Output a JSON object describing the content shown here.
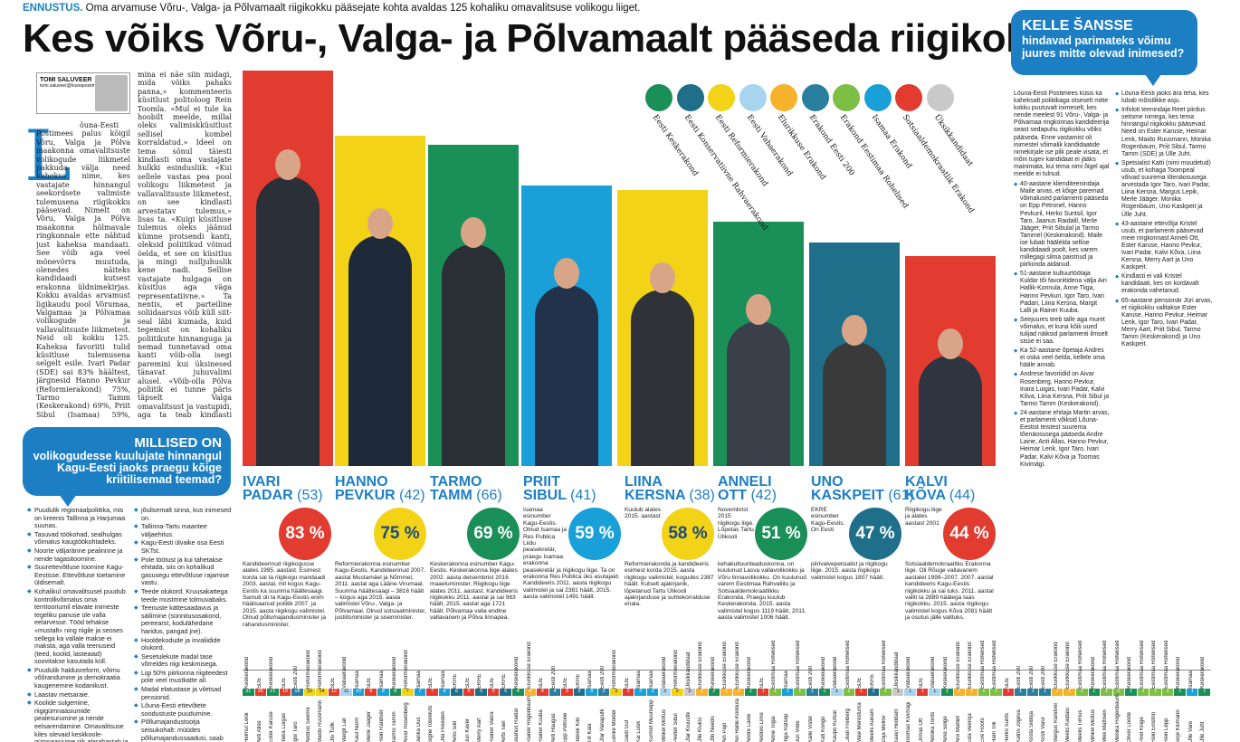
{
  "kicker": {
    "label": "ENNUSTUS.",
    "text": "Oma arvamuse Võru-, Valga- ja Põlvamaalt riigikokku pääsejate kohta avaldas 125 kohaliku omavalitsuse volikogu liiget."
  },
  "headline": "Kes võiks Võru-, Valga- ja Põlvamaalt pääseda riigikokku?",
  "byline": {
    "author": "TOMI SALUVEER",
    "email": "tomi.saluveer@lounapostimees.ee"
  },
  "article": {
    "dropcap": "L",
    "col1": "õuna-Eesti Postimees palus kõigil Võru, Valga ja Põlva maakonna omavalitsuste volikogude liikmetel pakkuda välja need kaheksa nime, kes vastajate hinnangul seekordsete valimiste tulemusena riigikokku pääsevad. Nimelt on Võru, Valga ja Põlva maakonna hõlmavale ringkonnale ette nähtud just kaheksa mandaati. See võib aga veel mõnevõrra muutuda, olenedes näiteks kandidaadi kutsest erakonna üldnimekirjas. Kokku avaldas arvamust ligikaudu pool Võrumaa, Valgamaa ja Põlvamaa volikogude ja vallavalitsuste liikmetest. Neid oli kokku 125. Kaheksa favoriiti tulid küsitluse tulemusena selgelt esile. Ivari Padar (SDE) sai 83% häältest, järgnesid Hanno Pevkur (Reformierakond) 75%, Tarmo Tamm (Keskerakond) 69%, Priit Sibul (Isamaa) 59%, Liina Kersna (Reformierakond) 58%, Anneli Ott (Keskerakond) 51%, Uno Kaskpeit (EKRE) 47% ja Kalvi Kõva (SDE) 44 protsendiga. «Sellise küsitluse mõte on väga hea. Kuigi mõni partei võib hakata näigutama või vaita, et see on kuidagi kallutatud, siis",
    "col2": "mina ei näe siin midagi, mida võiks pahaks panna,» kommenteeris küsitlust politoloog Rein Toomla. «Mul ei tule ka hoobilt meelde, millal oleks valimiskküsitlust sellisel kombel korraldatud.» Ideel on tema sõnul täiesti kindlasti oma vastajate hulkki esindusliik. «Kui sellele vastas pea pool volikogu liikmetest ja vallavalitsuste liikmetest, on see kindlasti arvestatav tulemus,» lisas ta. «Kuigi küsitluse tulemus oleks jäänud kümne protsendi kanti, oleksid poliitikud võinud öelda, et see on küsitlus ja mingi nulljuhuslik kene nadi. Sellise vastajate hulgaga on küsitlus aga väga representatiivne.» Ta nentis, et parteiline soliidaarsus võib küll siit-seal läbi kumada, kuid tegemist on kohaliku poliitikute hinnanguga ja nemad tunnetavad oma kanti võib-olla isegi paremini kui üksinesed tänavat juhuvalimi alusel. «Võib-olla Põlva poliitik ei tunne päris täpselt Valga omavalitsust ja vastupidi, aga ta teab kindlasti rohkem kui mõni uuringufirma.» Toomla hinnangul kinnitas ka Johan Skytte poliitikauuringute instituudi juhataja Mihkel Solvak. «Volikogu liikmed võivad tajuda hetkeolukorda kindlasti paremini,» rääkis Solvak. «Nad on näinud ka kampaania poolt ja teavad, kellel ja kus mingis piirkonnas tugevam toetus on.» Ta lisas, et riikliikud küsitlused kohalikku meelsust sageli kuigi hästi ei peegelda, kuna piirkonnast on küsitud vaid sadakonna inimese arvamust."
  },
  "qbox": {
    "title": "MILLISED ON",
    "subtitle": "volikogudesse kuulujate hinnangul Kagu-Eesti jaoks praegu kõige kriitilisemad teemad?"
  },
  "issues_left": [
    "Puudulik regionaalpoliitika, mis on kreenis Tallinna ja Harjumaa suunas.",
    "Tasuvad töökohad, sealhulgas võimalus kaugtöökohtadeks.",
    "Noorte väljaränne pealinnne ja nende tagasitoomine.",
    "Suurettevõtluse toomine Kagu-Eestisse. Ettevõtluse toetamine üldisemalt.",
    "Kohalikul omavalitsusel puudub kontrollivõimalus oma territooriumil elavate inimeste tegeliku panuse üle valla eelarvesse. Tööd tehakse «mustalt» ning riigile ja seoses sellega ka vallale makse ei maksta, aga valla teenuseid (teed, koolid, lasteaiad) soovitakse kasutada küll.",
    "Puudulik haldusreform, võimu võõrandumine ja demokraatia kaugenemine kodanikust.",
    "Laastav metsaraie.",
    "Koolide sulgemine, riigigümnaasiumide pealesurumine ja nende eelsarendamine. Omavalitsuse kiles olevaid keskkoole-gümnaasiume riik alarahastab ja soovib sulgeda.",
    "Omavalitsuste tulubaasi tuleks"
  ],
  "issues_mid": [
    "jõulisemalt sinna, kus inimesed on.",
    "Tallinna-Tartu maantee väljaehitus.",
    "Kagu-Eesti ülvaike osa Eesti SKTst.",
    "Pole töötust ja kui tahetakse ehitada, siis on kohalikud gasusegu ettevõtluse rajamise vastu.",
    "Teede olukord. Kruusakattega teede mustmine tolmuvabaks.",
    "Teenuste kättesaadavus ja säilimine (sünnitusosakond, pereearst, kodulähedane haridus, pangad jne).",
    "Hooldekodude ja invaliidide olukord.",
    "Sesetulekute madal tase võrreldes riigi keskmisega.",
    "Ligi 50% piirkonna riigiteedest pole veel mustkatte all.",
    "Madal elatustase ja viletsad pensionid.",
    "Lõuna-Eesti ettevõtete soodustuste puudumine.",
    "Põllumajandustootja seisukohalt: müüdes põllumajandussaadusi, saab Kagu-Eesti tootja madalamat hinda, kuna transpordikulu näiteks Tallinna sadamasse on suur."
  ],
  "parties": [
    {
      "name": "Eesti Keskerakond",
      "color": "#1a8f58"
    },
    {
      "name": "Eesti Konservatiivne Rahvaerakond",
      "color": "#1f6f8b"
    },
    {
      "name": "Eesti Reformierakond",
      "color": "#f2d318"
    },
    {
      "name": "Eesti Vabaerakond",
      "color": "#a9d4ee"
    },
    {
      "name": "Elurikkuse Erakond",
      "color": "#f7b22b"
    },
    {
      "name": "Erakond Eesti 200",
      "color": "#2a7fa0"
    },
    {
      "name": "Erakond Eestimaa Rohelised",
      "color": "#7dbe45"
    },
    {
      "name": "Isamaa Erakond",
      "color": "#1aa0d8"
    },
    {
      "name": "Sotsiaaldemokraatlik Erakond",
      "color": "#e23b2f"
    },
    {
      "name": "Üksikkandidaat",
      "color": "#c9c9c9"
    }
  ],
  "candidates": [
    {
      "first": "IVARI",
      "last": "PADAR",
      "age": "(53)",
      "pct": "83 %",
      "color": "#e23b2f",
      "desc": "Kandideerinud riigikogusse alates 1995. aastast. Esimest korda sai ta riigikogu mandaadi 2003. aastal, mil kogus Kagu-Eestis ka suurima häältesaagi. Samuti oli ta Kagu-Eestis enim häälisaanud poliitik 2007. ja 2015. aasta riigikogu valimistel. Olnud põllumajandusminister ja rahandusminister."
    },
    {
      "first": "HANNO",
      "last": "PEVKUR",
      "age": "(42)",
      "pct": "75 %",
      "color": "#f2d318",
      "desc": "Reformierakonna esinumber Kagu-Eestis. Kandideerinud 2007. aastal Mustamäel ja Nõmmel, 2011. aastal aga Lääne-Virumaal. Suurima häältesaagi – 3816 häält – kogus aga 2015. aasta valimistel Võru-, Valga- ja Põlvamaal. Olnud sotsiaalminister, justiitsminister ja siseminister."
    },
    {
      "first": "TARMO",
      "last": "TAMM",
      "age": "(66)",
      "pct": "69 %",
      "color": "#1a8f58",
      "desc": "Keskerakonna esinumber Kagu-Eestis. Keskerakonna liige alates 2002. aasta detsembrist 2016 maaeluminister. Riigikogu liige alates 2011. aastast. Kandideeris riigikokku 2011. aastal ja sai 983 häält, 2015. aastal aga 1721 häält. Põlvamaa valla endine vallavanem ja Põlva linnapea."
    },
    {
      "first": "PRIIT",
      "last": "SIBUL",
      "age": "(41)",
      "pct": "59 %",
      "color": "#1aa0d8",
      "desc": "Isamaa esinumber Kagu-Eestis. Olnud Isamaa ja Res Publica Liidu peasekretär, praegu Isamaa erakonna peasekretär ja riigikogu liige. Ta on erakonna Res Publica üks asutajaid. Kandideeris 2011. aasta riigikogu valimistel ja sai 2381 häält, 2015. aasta valimistel 1491 häält."
    },
    {
      "first": "LIINA",
      "last": "KERSNA",
      "age": "(38)",
      "pct": "58 %",
      "color": "#f2d318",
      "desc": "Kuulub alates 2015. aastast Reformierakonda ja kandideeris esimest korda 2015. aasta riigikogu valimistel, kogudes 2387 häält. Kutselt ajakirjanik, lõpetanud Tartu Ülikooli ajakirjanduse ja suhtekorralduse eriala."
    },
    {
      "first": "ANNELI",
      "last": "OTT",
      "age": "(42)",
      "pct": "51 %",
      "color": "#1a8f58",
      "desc": "Novembrist 2015 riigikogu liige. Lõpetas Tartu Ülikooli kehakultuuriteaduskonna, on kuulunud Lasva vallavolikokku ja Võru linnavolikokku. On kuulunud varem Eestimaa Rahvaliitu ja Sotsiaaldemokraatlikku Erakonda. Praegu kuulub Keskerakonda. 2015. aasta valimistel kogus 1119 häält, 2011. aasta valimistel 1006 häält."
    },
    {
      "first": "UNO",
      "last": "KASKPEIT",
      "age": "(61)",
      "pct": "47 %",
      "color": "#1f6f8b",
      "desc": "EKRE esinumber Kagu-Eestis. On Eesti piirivalvepetsialist ja riigikogu liige. 2015. aasta riigikogu valimistel kogus 1807 häält."
    },
    {
      "first": "KALVI",
      "last": "KÕVA",
      "age": "(44)",
      "pct": "44 %",
      "color": "#e23b2f",
      "desc": "Riigikogu liige ja alates aastast 2001 Sotsiaaldemokraatliku Erakonna liige. Oli Rõuge vallavanem aastatel 1999–2007. 2007. aastal kandideeris Kagu-Eestis riigikokku ja sai tuks. 2011. aastal valiti ta 2889 häälega taas riigikokku. 2015. aasta riigikogu valimistel kogus Kõva 2081 häält ja osutus jälle valituks."
    }
  ],
  "right": {
    "title": "KELLE ŠANSSE",
    "subtitle": "hindavad parimateks võimu juures mitte olevad inimesed?",
    "intro": "Lõuna-Eesti Postimees küsis ka kaheksalt poliitikaga otseselt mitte kokku puutuvalt inimeselt, kes nende meelest 91 Võru-, Valga- ja Põlvamaa ringkonnas kandideerija seast sedapuhu riigikokku võiks pääseda. Enne vastamist oli inimestel võimalik kandidaatide nimekirjale ise pilk peale visata, et mõni tugev kandidaat ei jääks mainimata, kui tema nimi õigel ajal meelde ei tulnud.",
    "items": [
      "40-aastane klienditeenindaja Maile arvas, et kõige paremad võimalused parlamenti pääseda on Epp Petronel, Hanno Pevkuril, Herko Suntsil, Igor Taro, Jaanus Raidalil, Merle Jääger, Priit Sibulal ja Tarmo Tammel (Keskerakond). Maile ise lubab häälelda sellise kandidaadi poolt, kes varem millegagi silma paistnud ja piirkonda aidanud.",
      "51-aastane kultuurtöötaja Kuldar tõi favoriitidena välja Airi Hallik-Konnula, Anne Tiiga, Hanno Pevkuri, Igor Taro, Ivari Padari, Liina Kersna, Margit Lalli ja Rainer Kuuba.",
      "Seejuures teeb talle aga muret võimalus, et kuna kõik uued tulijad näiksid parlamenti ilmselt sisse ei saa.",
      "Ka 52-aastane õpetaja Andres ei oska veel öelda, kellele oma hääle annab.",
      "Andrese favoriidid on Aivar Rosenberg, Hanno Pevkur, Inara Luigas, Ivari Padar, Kalvi Kõva, Liina Kersna, Priit Sibul ja Tarmo Tamm (Keskerakond).",
      "24-aastane ehitaja Martin arvas, et parlamenti võiksid Lõuna-Eestist teistest suurema tõenäosusega pääseda Andre Laine, Anti Allas, Hanno Pevkur, Heimar Lenk, Igor Taro, Ivari Padar, Kalvi Kõva ja Toomas Kivimägi.",
      "Lõuna-Eesti jaoks ära teha, kes lubab mõistlikke asju.",
      "Infoloti teenindaja Reet piirdus seitsme nimega, kes tema hinnangul riigikokku pääsevad. Need on Ester Karuse, Heimar Lenk, Maido Ruusmann, Monika Rogenbaum, Priit Sibul, Tarmo Tamm (SDE) ja Ülle Juht.",
      "Spetsialist Katti (nimi muudetud) usub, et kohaga Toompeal võivad suurema tõenäosusega arvestada Igor Taro, Ivari Padar, Liina Kersna, Margus Lepik, Merle Jääger, Monika Rogenbaum, Uno Kaskpeit ja Ülle Juht.",
      "43-aastane ettevõtja Kristel usub, et parlamenti pääsevad meie ringkonnast Anneli Ott, Ester Karuse, Hanno Pevkur, Ivari Padar, Kalvi Kõva, Liina Kersna, Merry Aart ja Uno Kaskpeit.",
      "Kindlasti ei vali Kristel kandidaati, kes on kordavalt erakonda vahetanud.",
      "65-aastane pensionär Jüri arvas, et riigikokku valitakse Ester Karuse, Hanno Pevkur, Heimar Lenk, Igor Taro, Ivari Padar, Merry Aart, Priit Sibul, Tarmo Tamm (Keskerakond) ja Uno Kaskpeit."
    ]
  },
  "table": [
    {
      "n": "31",
      "p": "Keskerakond",
      "nm": "Helmut Lenk",
      "c": "#1a8f58"
    },
    {
      "n": "26",
      "p": "SDE",
      "nm": "Anti Allas",
      "c": "#e23b2f"
    },
    {
      "n": "21",
      "p": "Keskerakond",
      "nm": "Ester Karuse",
      "c": "#1a8f58"
    },
    {
      "n": "19",
      "p": "SDE",
      "nm": "Inara Luigas",
      "c": "#e23b2f"
    },
    {
      "n": "18",
      "p": "Eesti 200",
      "nm": "Igor Taro",
      "c": "#2a7fa0"
    },
    {
      "n": "16",
      "p": "Reformierakond",
      "nm": "Andrus Seeme",
      "c": "#f2d318"
    },
    {
      "n": "14",
      "p": "Reformierakond",
      "nm": "Maido Ruusmann",
      "c": "#f2d318"
    },
    {
      "n": "12",
      "p": "SDE",
      "nm": "Ülo Tulik",
      "c": "#e23b2f"
    },
    {
      "n": "11",
      "p": "Vabaerakond",
      "nm": "Margit Lall",
      "c": "#a9d4ee"
    },
    {
      "n": "10",
      "p": "Isamaa",
      "nm": "Kaul Nurm",
      "c": "#1aa0d8"
    },
    {
      "n": "9",
      "p": "SDE",
      "nm": "Merle Jääger",
      "c": "#e23b2f"
    },
    {
      "n": "8",
      "p": "Isamaa",
      "nm": "Rein Randver",
      "c": "#1aa0d8"
    },
    {
      "n": "8",
      "p": "Keskerakond",
      "nm": "Tarmo Tamm",
      "c": "#1a8f58"
    },
    {
      "n": "7",
      "p": "Reformierakond",
      "nm": "Aivar Rosenberg",
      "c": "#f2d318"
    },
    {
      "n": "7",
      "p": "Isamaa",
      "nm": "Jarika Uus",
      "c": "#1aa0d8"
    },
    {
      "n": "7",
      "p": "SDE",
      "nm": "Signe Tobreluts",
      "c": "#e23b2f"
    },
    {
      "n": "6",
      "p": "Isamaa",
      "nm": "Ulla Preeden",
      "c": "#1aa0d8"
    },
    {
      "n": "6",
      "p": "EKRE",
      "nm": "Arno Sild",
      "c": "#1f6f8b"
    },
    {
      "n": "5",
      "p": "SDE",
      "nm": "Jüri Kaver",
      "c": "#e23b2f"
    },
    {
      "n": "5",
      "p": "EKRE",
      "nm": "Merry Aart",
      "c": "#1f6f8b"
    },
    {
      "n": "5",
      "p": "SDE",
      "nm": "Rainer Vakra",
      "c": "#e23b2f"
    },
    {
      "n": "5",
      "p": "EKRE",
      "nm": "Ants Tael",
      "c": "#1f6f8b"
    },
    {
      "n": "4",
      "p": "Keskerakond",
      "nm": "Jaanus Raidal",
      "c": "#1a8f58"
    },
    {
      "n": "4",
      "p": "Elurikkuse Erakond",
      "nm": "Rainer Rogenbaum",
      "c": "#f7b22b"
    },
    {
      "n": "4",
      "p": "SDE",
      "nm": "Rainer Kuuba",
      "c": "#e23b2f"
    },
    {
      "n": "4",
      "p": "Eesti 200",
      "nm": "Anti Haugas",
      "c": "#2a7fa0"
    },
    {
      "n": "3",
      "p": "SDE",
      "nm": "Epp Petrone",
      "c": "#e23b2f"
    },
    {
      "n": "3",
      "p": "EKRE",
      "nm": "Indrek Kilo",
      "c": "#1f6f8b"
    },
    {
      "n": "3",
      "p": "Isamaa",
      "nm": "Tiit Kala",
      "c": "#1aa0d8"
    },
    {
      "n": "3",
      "p": "Eesti 200",
      "nm": "Ülar Vanaputk",
      "c": "#2a7fa0"
    },
    {
      "n": "3",
      "p": "Reformierakond",
      "nm": "Eerike Mölder",
      "c": "#f2d318"
    },
    {
      "n": "2",
      "p": "SDE",
      "nm": "Gaidi Gut",
      "c": "#e23b2f"
    },
    {
      "n": "2",
      "p": "Isamaa",
      "nm": "Kai Lusik",
      "c": "#1aa0d8"
    },
    {
      "n": "2",
      "p": "Isamaa",
      "nm": "Kurmet Müürsepp",
      "c": "#1aa0d8"
    },
    {
      "n": "2",
      "p": "Vabaerakond",
      "nm": "Mihkel Mõttus",
      "c": "#a9d4ee"
    },
    {
      "n": "2",
      "p": "Reformierakond",
      "nm": "Peeter Sibul",
      "c": "#f2d318"
    },
    {
      "n": "2",
      "p": "Üksikkandidaat",
      "nm": "Ülar Kruustik",
      "c": "#c9c9c9"
    },
    {
      "n": "2",
      "p": "Elurikkuse Erakond",
      "nm": "Ülle Kiuksi",
      "c": "#f7b22b"
    },
    {
      "n": "2",
      "p": "Keskerakond",
      "nm": "Üllo Needo",
      "c": "#1a8f58"
    },
    {
      "n": "1",
      "p": "Elurikkuse Erakond",
      "nm": "Ain Pajo",
      "c": "#f7b22b"
    },
    {
      "n": "1",
      "p": "Elurikkuse Erakond",
      "nm": "Airi Hallik-Konnula",
      "c": "#f7b22b"
    },
    {
      "n": "1",
      "p": "Keskerakond",
      "nm": "Andre Laine",
      "c": "#1a8f58"
    },
    {
      "n": "1",
      "p": "SDE",
      "nm": "Andres Lime",
      "c": "#e23b2f"
    },
    {
      "n": "1",
      "p": "Eestimaa Rohelised",
      "nm": "Anne Tiigai",
      "c": "#7dbe45"
    },
    {
      "n": "1",
      "p": "Isamaa",
      "nm": "Inga Rätsep",
      "c": "#1aa0d8"
    },
    {
      "n": "1",
      "p": "Eestimaa Rohelised",
      "nm": "Jüri Vilde",
      "c": "#7dbe45"
    },
    {
      "n": "1",
      "p": "Eesti 200",
      "nm": "Kalle Vister",
      "c": "#2a7fa0"
    },
    {
      "n": "1",
      "p": "Keskerakond",
      "nm": "Kati Kongo",
      "c": "#1a8f58"
    },
    {
      "n": "1",
      "p": "Vabaerakond",
      "nm": "Kaupo Kutsar",
      "c": "#a9d4ee"
    },
    {
      "n": "1",
      "p": "Eestimaa Rohelised",
      "nm": "Lilian Freiberg",
      "c": "#7dbe45"
    },
    {
      "n": "1",
      "p": "SDE",
      "nm": "Maie Merestuma",
      "c": "#e23b2f"
    },
    {
      "n": "1",
      "p": "EKRE",
      "nm": "Meelis Aunam",
      "c": "#1f6f8b"
    },
    {
      "n": "1",
      "p": "Eestimaa Rohelised",
      "nm": "Zoja Mellov",
      "c": "#7dbe45"
    },
    {
      "n": "1",
      "p": "Üksikkandidaat",
      "nm": "Taavi Hiiddam",
      "c": "#c9c9c9"
    },
    {
      "n": "1",
      "p": "Vabaerakond",
      "nm": "Toomas Kivimägi",
      "c": "#a9d4ee"
    },
    {
      "n": "1",
      "p": "SDE",
      "nm": "Urmas Ott",
      "c": "#e23b2f"
    },
    {
      "n": "1",
      "p": "Vabaerakond",
      "nm": "Annika Toots",
      "c": "#a9d4ee"
    },
    {
      "n": "1",
      "p": "Keskerakond",
      "nm": "Arne Selge",
      "c": "#1a8f58"
    },
    {
      "n": "1",
      "p": "Elurikkuse Erakond",
      "nm": "Arvi Mahlet",
      "c": "#f7b22b"
    },
    {
      "n": "1",
      "p": "Elurikkuse Erakond",
      "nm": "Eda Veeroja",
      "c": "#f7b22b"
    },
    {
      "n": "1",
      "p": "Eestimaa Rohelised",
      "nm": "Eve Roots",
      "c": "#7dbe45"
    },
    {
      "n": "1",
      "p": "Eestimaa Rohelised",
      "nm": "Harri Tilk",
      "c": "#7dbe45"
    },
    {
      "n": "1",
      "p": "SDE",
      "nm": "Herko Sunts",
      "c": "#e23b2f"
    },
    {
      "n": "1",
      "p": "Eesti 200",
      "nm": "Katrin Jõgeva",
      "c": "#2a7fa0"
    },
    {
      "n": "1",
      "p": "Eesti 200",
      "nm": "Krista Sildoja",
      "c": "#2a7fa0"
    },
    {
      "n": "1",
      "p": "Eesti 200",
      "nm": "Kristi Varul",
      "c": "#2a7fa0"
    },
    {
      "n": "1",
      "p": "Elurikkuse Erakond",
      "nm": "Margus Randver",
      "c": "#f7b22b"
    },
    {
      "n": "1",
      "p": "Elurikkuse Erakond",
      "nm": "Meelis Kaldalu",
      "c": "#f7b22b"
    },
    {
      "n": "1",
      "p": "Eestimaa Rohelised",
      "nm": "Meelis Tiimus",
      "c": "#7dbe45"
    },
    {
      "n": "1",
      "p": "Keskerakond",
      "nm": "Mihkel Mõttus",
      "c": "#1a8f58"
    },
    {
      "n": "1",
      "p": "Eestimaa Rohelised",
      "nm": "Mikk Mattisen",
      "c": "#7dbe45"
    },
    {
      "n": "1",
      "p": "Eestimaa Rohelised",
      "nm": "Monika Rogenbaum",
      "c": "#7dbe45"
    },
    {
      "n": "1",
      "p": "Keskerakond",
      "nm": "Oliver Loode",
      "c": "#1a8f58"
    },
    {
      "n": "1",
      "p": "Eestimaa Rohelised",
      "nm": "Piret Kliige",
      "c": "#7dbe45"
    },
    {
      "n": "1",
      "p": "Eestimaa Rohelised",
      "nm": "Rein Einstrin",
      "c": "#7dbe45"
    },
    {
      "n": "1",
      "p": "Eestimaa Rohelised",
      "nm": "Rein Lepp",
      "c": "#7dbe45"
    },
    {
      "n": "1",
      "p": "Keskerakond",
      "nm": "Sirje Kliimann",
      "c": "#1a8f58"
    },
    {
      "n": "1",
      "p": "Isamaa",
      "nm": "Ülle Vare",
      "c": "#1aa0d8"
    },
    {
      "n": "1",
      "p": "Keskerakond",
      "nm": "Ülle Juht",
      "c": "#1a8f58"
    }
  ]
}
